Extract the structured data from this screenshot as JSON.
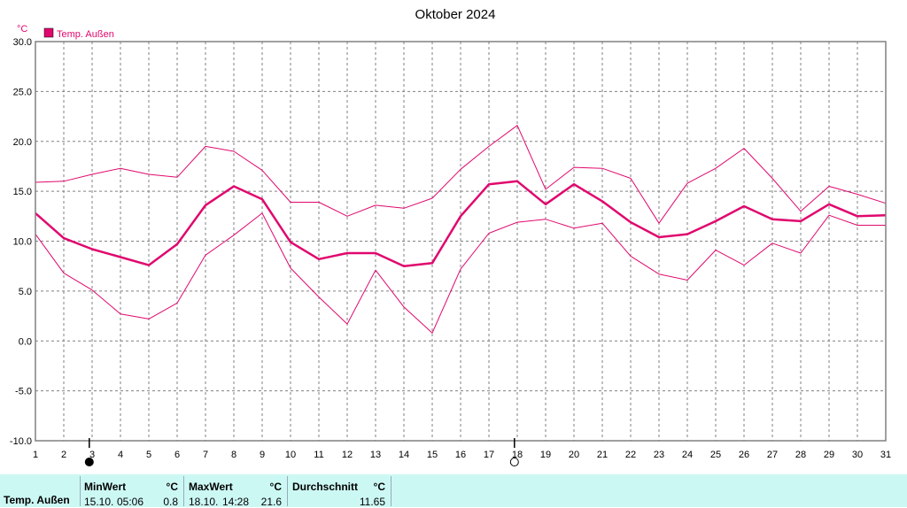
{
  "chart_data": {
    "type": "line",
    "title": "Oktober 2024",
    "ylabel": "°C",
    "ylim": [
      -10,
      30
    ],
    "ytick_step": 5,
    "grid": true,
    "legend": "top-left",
    "x": [
      1,
      2,
      3,
      4,
      5,
      6,
      7,
      8,
      9,
      10,
      11,
      12,
      13,
      14,
      15,
      16,
      17,
      18,
      19,
      20,
      21,
      22,
      23,
      24,
      25,
      26,
      27,
      28,
      29,
      30,
      31
    ],
    "series": [
      {
        "name": "Temp. Außen",
        "role": "avg",
        "color": "#e0086e",
        "values": [
          12.8,
          10.3,
          9.2,
          8.4,
          7.6,
          9.7,
          13.6,
          15.5,
          14.2,
          9.9,
          8.2,
          8.8,
          8.8,
          7.5,
          7.8,
          12.5,
          15.7,
          16.0,
          13.7,
          15.7,
          14.0,
          11.9,
          10.4,
          10.7,
          12.0,
          13.5,
          12.2,
          12.0,
          13.7,
          12.5,
          12.6
        ]
      },
      {
        "role": "max",
        "color": "#e0086e",
        "values": [
          15.9,
          16.0,
          16.7,
          17.3,
          16.7,
          16.4,
          19.5,
          19.0,
          17.1,
          13.9,
          13.9,
          12.5,
          13.6,
          13.3,
          14.3,
          17.2,
          19.5,
          21.6,
          15.2,
          17.4,
          17.3,
          16.3,
          11.8,
          15.8,
          17.3,
          19.3,
          16.3,
          13.0,
          15.5,
          14.7,
          13.8
        ]
      },
      {
        "role": "min",
        "color": "#e0086e",
        "values": [
          10.7,
          6.8,
          5.1,
          2.7,
          2.2,
          3.8,
          8.6,
          10.6,
          12.8,
          7.3,
          4.4,
          1.7,
          7.1,
          3.4,
          0.8,
          7.2,
          10.8,
          11.9,
          12.2,
          11.3,
          11.8,
          8.5,
          6.7,
          6.1,
          9.1,
          7.6,
          9.8,
          8.8,
          12.6,
          11.6,
          11.6
        ]
      }
    ],
    "moon_phases": [
      {
        "day": 3,
        "phase": "new"
      },
      {
        "day": 18,
        "phase": "full"
      }
    ]
  },
  "summary": {
    "row_label": "Temp. Außen",
    "min": {
      "header": "MinWert",
      "unit": "°C",
      "date": "15.10.",
      "time": "05:06",
      "value": "0.8"
    },
    "max": {
      "header": "MaxWert",
      "unit": "°C",
      "date": "18.10.",
      "time": "14:28",
      "value": "21.6"
    },
    "avg": {
      "header": "Durchschnitt",
      "unit": "°C",
      "value": "11.65"
    }
  }
}
